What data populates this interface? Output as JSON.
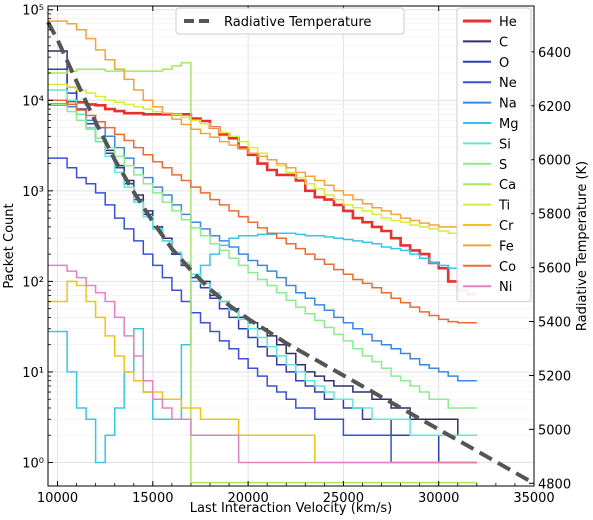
{
  "chart_data": {
    "type": "line",
    "drawstyle": "steps",
    "xlabel": "Last Interaction Velocity (km/s)",
    "ylabel": "Packet Count",
    "y2label": "Radiative Temperature (K)",
    "xlim": [
      9500,
      35000
    ],
    "ylim": [
      0.55,
      110000
    ],
    "y2lim": [
      4790,
      6570
    ],
    "yscale": "log",
    "x_ticks": [
      10000,
      15000,
      20000,
      25000,
      30000,
      35000
    ],
    "x_tick_labels": [
      "10000",
      "15000",
      "20000",
      "25000",
      "30000",
      "35000"
    ],
    "y_ticks": [
      1,
      10,
      100,
      1000,
      10000,
      100000
    ],
    "y_tick_labels": [
      "10⁰",
      "10¹",
      "10²",
      "10³",
      "10⁴",
      "10⁵"
    ],
    "y2_ticks": [
      4800,
      5000,
      5200,
      5400,
      5600,
      5800,
      6000,
      6200,
      6400
    ],
    "y2_tick_labels": [
      "4800",
      "5000",
      "5200",
      "5400",
      "5600",
      "5800",
      "6000",
      "6200",
      "6400"
    ],
    "grid": true,
    "legend_main": {
      "placement": "top-center",
      "entries": [
        "Radiative Temperature"
      ]
    },
    "legend_elements": {
      "placement": "top-right"
    },
    "temperature": {
      "name": "Radiative Temperature",
      "color": "#555555",
      "x": [
        9500,
        10000,
        11000,
        12000,
        13000,
        14000,
        15000,
        16000,
        17000,
        18000,
        19000,
        20000,
        21000,
        22000,
        23000,
        24000,
        25000,
        26000,
        27000,
        28000,
        29000,
        30000,
        31000,
        32000,
        33000,
        34000,
        35000
      ],
      "y": [
        6510,
        6445,
        6290,
        6140,
        6000,
        5880,
        5770,
        5670,
        5590,
        5520,
        5460,
        5410,
        5365,
        5320,
        5280,
        5240,
        5200,
        5160,
        5120,
        5080,
        5040,
        5000,
        4960,
        4920,
        4880,
        4840,
        4800
      ]
    },
    "series": [
      {
        "name": "He",
        "color": "#e8302c",
        "values": [
          9000,
          9800,
          9500,
          9000,
          8800,
          8000,
          7600,
          7200,
          7200,
          7000,
          7000,
          7000,
          7000,
          7000,
          6300,
          5900,
          5000,
          4200,
          3800,
          3000,
          2500,
          2000,
          1700,
          1500,
          1500,
          1300,
          1000,
          850,
          800,
          700,
          600,
          500,
          450,
          400,
          360,
          300,
          250,
          220,
          200,
          160,
          140,
          100,
          80,
          72
        ]
      },
      {
        "name": "C",
        "color": "#2e2e6e",
        "values": [
          35000,
          14000,
          8000,
          5500,
          3800,
          2800,
          1900,
          1300,
          900,
          600,
          400,
          300,
          200,
          150,
          120,
          100,
          70,
          60,
          50,
          40,
          35,
          30,
          25,
          20,
          16,
          12,
          10,
          9,
          8,
          7,
          7,
          6,
          6,
          5,
          5,
          4,
          4,
          3,
          3,
          3,
          3,
          3,
          2,
          2
        ]
      },
      {
        "name": "O",
        "color": "#2f3fae",
        "values": [
          22000,
          12000,
          8000,
          5500,
          3800,
          2600,
          1800,
          1200,
          800,
          550,
          380,
          280,
          200,
          150,
          110,
          85,
          65,
          50,
          40,
          30,
          24,
          19,
          15,
          12,
          10,
          8,
          7,
          6,
          5,
          5,
          4,
          4,
          3,
          3,
          3,
          2,
          2,
          2,
          2,
          2,
          1,
          1,
          1,
          1
        ]
      },
      {
        "name": "Ne",
        "color": "#3a50d8",
        "values": [
          2300,
          1800,
          1400,
          1200,
          950,
          700,
          500,
          380,
          280,
          200,
          150,
          110,
          80,
          60,
          45,
          35,
          28,
          22,
          18,
          14,
          11,
          9,
          7,
          6,
          5,
          4,
          4,
          3,
          3,
          3,
          2,
          2,
          2,
          2,
          2,
          1,
          1,
          1,
          1,
          1,
          1,
          1,
          1,
          1
        ]
      },
      {
        "name": "Na",
        "color": "#3a88e0",
        "values": [
          9000,
          8500,
          7000,
          6000,
          5000,
          4000,
          3000,
          2300,
          1800,
          1400,
          1100,
          900,
          700,
          550,
          450,
          380,
          320,
          280,
          240,
          200,
          170,
          150,
          130,
          110,
          90,
          75,
          65,
          55,
          48,
          40,
          35,
          30,
          26,
          22,
          20,
          18,
          16,
          14,
          12,
          11,
          10,
          9,
          8,
          8
        ]
      },
      {
        "name": "Mg",
        "color": "#38c6e8",
        "values": [
          28,
          10,
          4,
          3,
          1,
          2,
          4,
          10,
          30,
          6,
          3,
          3,
          3,
          20,
          100,
          150,
          200,
          250,
          300,
          320,
          320,
          330,
          330,
          340,
          340,
          330,
          320,
          320,
          310,
          300,
          290,
          280,
          270,
          260,
          240,
          230,
          220,
          200,
          180,
          160,
          150,
          140,
          130,
          120
        ]
      },
      {
        "name": "Si",
        "color": "#5ee8d6",
        "values": [
          13000,
          10000,
          7000,
          5000,
          3500,
          2400,
          1600,
          1100,
          750,
          520,
          380,
          280,
          210,
          160,
          120,
          95,
          75,
          60,
          48,
          38,
          30,
          24,
          19,
          15,
          12,
          10,
          8,
          7,
          6,
          5,
          5,
          4,
          4,
          3,
          3,
          3,
          3,
          2,
          2,
          2,
          2,
          2,
          2,
          2
        ]
      },
      {
        "name": "S",
        "color": "#8eec8e",
        "values": [
          9000,
          7500,
          6000,
          4800,
          3800,
          3000,
          2400,
          1900,
          1500,
          1200,
          950,
          750,
          600,
          480,
          390,
          320,
          260,
          220,
          180,
          150,
          125,
          105,
          90,
          75,
          62,
          52,
          44,
          37,
          31,
          26,
          22,
          18,
          15,
          13,
          11,
          9,
          8,
          7,
          6,
          5,
          5,
          4,
          4,
          4
        ]
      },
      {
        "name": "Ca",
        "color": "#a6e85a",
        "values": [
          20000,
          21000,
          22000,
          22000,
          22000,
          21000,
          21000,
          21000,
          21000,
          21000,
          21000,
          22000,
          24000,
          26000,
          0.6,
          0.6,
          0.6,
          0.6,
          0.6,
          0.6,
          0.6,
          0.6,
          0.6,
          0.6,
          0.6,
          0.6,
          0.6,
          0.6,
          0.6,
          0.6,
          0.6,
          0.6,
          0.6,
          0.6,
          0.6,
          0.6,
          0.6,
          0.6,
          0.6,
          0.6,
          0.6,
          0.6,
          0.6,
          0.6
        ]
      },
      {
        "name": "Ti",
        "color": "#d8ec3a",
        "values": [
          15000,
          14000,
          13000,
          12000,
          11000,
          10000,
          9500,
          9000,
          8500,
          8000,
          7500,
          7200,
          7000,
          6500,
          6000,
          5500,
          5000,
          4400,
          4000,
          3500,
          3000,
          2600,
          2200,
          1900,
          1600,
          1400,
          1200,
          1050,
          900,
          800,
          700,
          650,
          600,
          550,
          500,
          470,
          450,
          420,
          400,
          380,
          360,
          340,
          320,
          300
        ]
      },
      {
        "name": "Cr",
        "color": "#f2c21a",
        "values": [
          60,
          100,
          90,
          60,
          40,
          25,
          15,
          10,
          8,
          6,
          6,
          5,
          5,
          4,
          4,
          3,
          3,
          3,
          3,
          2,
          2,
          2,
          2,
          2,
          2,
          2,
          2,
          1,
          1,
          1,
          1,
          1,
          1,
          1,
          1,
          1,
          1,
          1,
          1,
          1,
          1,
          1,
          1,
          1
        ]
      },
      {
        "name": "Fe",
        "color": "#f5a23a",
        "values": [
          75000,
          70000,
          60000,
          48000,
          36000,
          28000,
          22000,
          17000,
          13000,
          10000,
          8500,
          7200,
          6200,
          5400,
          4800,
          4300,
          3900,
          3500,
          3200,
          2900,
          2600,
          2400,
          2200,
          2000,
          1800,
          1600,
          1450,
          1300,
          1150,
          1000,
          900,
          800,
          720,
          650,
          600,
          550,
          500,
          470,
          440,
          420,
          400,
          400,
          420,
          450
        ]
      },
      {
        "name": "Co",
        "color": "#ee6a32",
        "values": [
          10000,
          9000,
          7800,
          6800,
          5800,
          5000,
          4200,
          3600,
          3000,
          2500,
          2100,
          1800,
          1500,
          1300,
          1100,
          950,
          800,
          700,
          600,
          520,
          450,
          390,
          340,
          300,
          260,
          230,
          200,
          175,
          155,
          135,
          120,
          105,
          95,
          85,
          75,
          65,
          58,
          52,
          46,
          42,
          38,
          36,
          35,
          35
        ]
      },
      {
        "name": "Ni",
        "color": "#e880c0",
        "values": [
          150,
          130,
          110,
          90,
          75,
          60,
          40,
          25,
          15,
          8,
          5,
          4,
          3,
          3,
          2,
          2,
          2,
          2,
          2,
          1,
          1,
          1,
          1,
          1,
          1,
          1,
          1,
          1,
          1,
          1,
          1,
          1,
          1,
          1,
          1,
          1,
          1,
          1,
          1,
          1,
          1,
          1,
          1,
          1
        ]
      }
    ]
  }
}
